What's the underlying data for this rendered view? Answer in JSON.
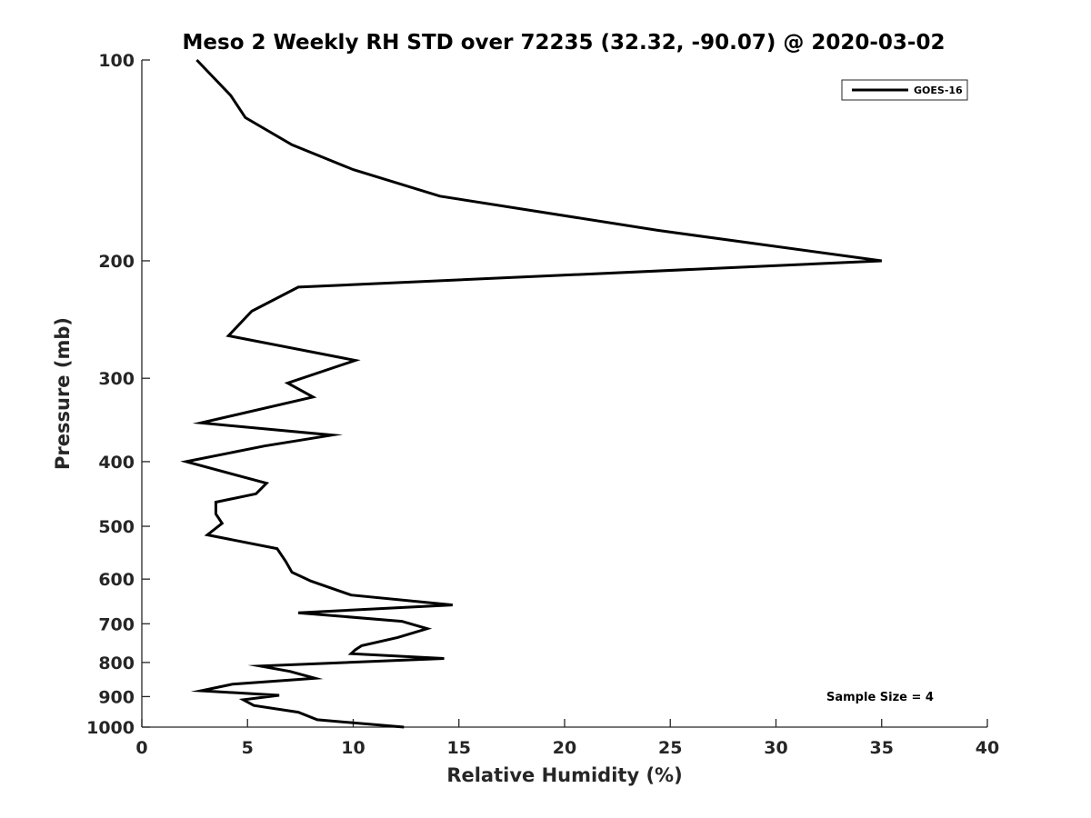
{
  "chart_data": {
    "type": "line",
    "title": "Meso 2 Weekly RH STD over 72235 (32.32, -90.07) @ 2020-03-02",
    "xlabel": "Relative Humidity (%)",
    "ylabel": "Pressure (mb)",
    "xlim": [
      0,
      40
    ],
    "ylim": [
      1000,
      100
    ],
    "yscale": "log",
    "xticks": [
      0,
      5,
      10,
      15,
      20,
      25,
      30,
      35,
      40
    ],
    "yticks": [
      100,
      200,
      300,
      400,
      500,
      600,
      700,
      800,
      900,
      1000
    ],
    "grid": false,
    "legend_position": "top-right",
    "annotation": "Sample Size = 4",
    "series": [
      {
        "name": "GOES-16",
        "color": "#000000",
        "x": [
          2.6,
          4.2,
          4.9,
          7.1,
          10.0,
          14.1,
          24.4,
          35.0,
          7.4,
          5.2,
          4.1,
          10.1,
          6.9,
          8.1,
          2.8,
          9.0,
          5.8,
          2.1,
          5.9,
          5.4,
          3.5,
          3.5,
          3.8,
          3.1,
          6.4,
          6.8,
          7.1,
          8.0,
          9.9,
          14.7,
          7.4,
          12.3,
          13.5,
          12.1,
          10.4,
          10.1,
          9.9,
          14.3,
          5.6,
          7.0,
          8.2,
          4.3,
          2.8,
          6.5,
          4.8,
          5.3,
          7.4,
          8.3,
          12.4
        ],
        "y": [
          100,
          113,
          122,
          134,
          146,
          160,
          180,
          200,
          219,
          238,
          259,
          282,
          305,
          320,
          350,
          365,
          379,
          400,
          431,
          447,
          460,
          479,
          495,
          515,
          540,
          564,
          586,
          604,
          634,
          656,
          674,
          694,
          712,
          734,
          755,
          766,
          776,
          789,
          810,
          825,
          845,
          862,
          882,
          896,
          910,
          928,
          950,
          975,
          1000
        ]
      }
    ]
  }
}
